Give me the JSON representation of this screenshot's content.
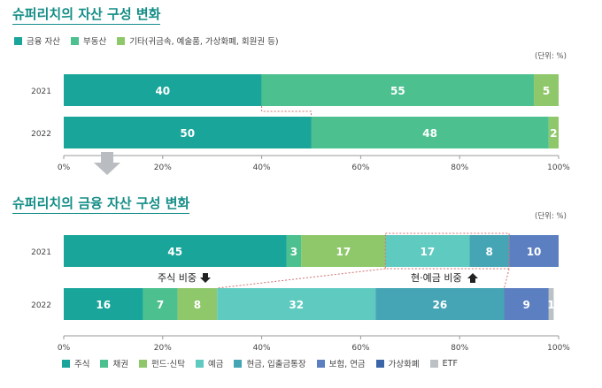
{
  "chart_data": [
    {
      "type": "bar",
      "orientation": "horizontal",
      "stacked": true,
      "title": "슈퍼리치의 자산 구성 변화",
      "unit": "(단위: %)",
      "categories": [
        "2021",
        "2022"
      ],
      "series": [
        {
          "name": "금융 자산",
          "color": "#1aa59a",
          "values": [
            40,
            50
          ]
        },
        {
          "name": "부동산",
          "color": "#4cc08f",
          "values": [
            55,
            48
          ]
        },
        {
          "name": "기타(귀금속, 예술품, 가상화폐, 회원권 등)",
          "color": "#8fc86a",
          "values": [
            5,
            2
          ]
        }
      ],
      "xticks": [
        "0%",
        "20%",
        "40%",
        "60%",
        "80%",
        "100%"
      ],
      "xlim": [
        0,
        100
      ],
      "grid": false,
      "legend_position": "top-left"
    },
    {
      "type": "bar",
      "orientation": "horizontal",
      "stacked": true,
      "title": "슈퍼리치의 금융 자산 구성 변화",
      "unit": "(단위: %)",
      "categories": [
        "2021",
        "2022"
      ],
      "series": [
        {
          "name": "주식",
          "color": "#1aa59a",
          "values": [
            45,
            16
          ]
        },
        {
          "name": "채권",
          "color": "#4cc08f",
          "values": [
            3,
            7
          ]
        },
        {
          "name": "펀드·신탁",
          "color": "#8fc86a",
          "values": [
            17,
            8
          ]
        },
        {
          "name": "예금",
          "color": "#5fcac0",
          "values": [
            17,
            32
          ]
        },
        {
          "name": "현금, 입출금통장",
          "color": "#45a5b5",
          "values": [
            8,
            26
          ]
        },
        {
          "name": "보험, 연금",
          "color": "#5b7fc0",
          "values": [
            10,
            9
          ]
        },
        {
          "name": "가상화폐",
          "color": "#3a66a8",
          "values": [
            0,
            0
          ]
        },
        {
          "name": "ETF",
          "color": "#bcc1c6",
          "values": [
            0,
            1
          ]
        }
      ],
      "annotations": [
        {
          "text": "주식 비중",
          "direction": "down"
        },
        {
          "text": "현·예금 비중",
          "direction": "up"
        }
      ],
      "xticks": [
        "0%",
        "20%",
        "40%",
        "60%",
        "80%",
        "100%"
      ],
      "xlim": [
        0,
        100
      ],
      "grid": false,
      "legend_position": "bottom"
    }
  ]
}
